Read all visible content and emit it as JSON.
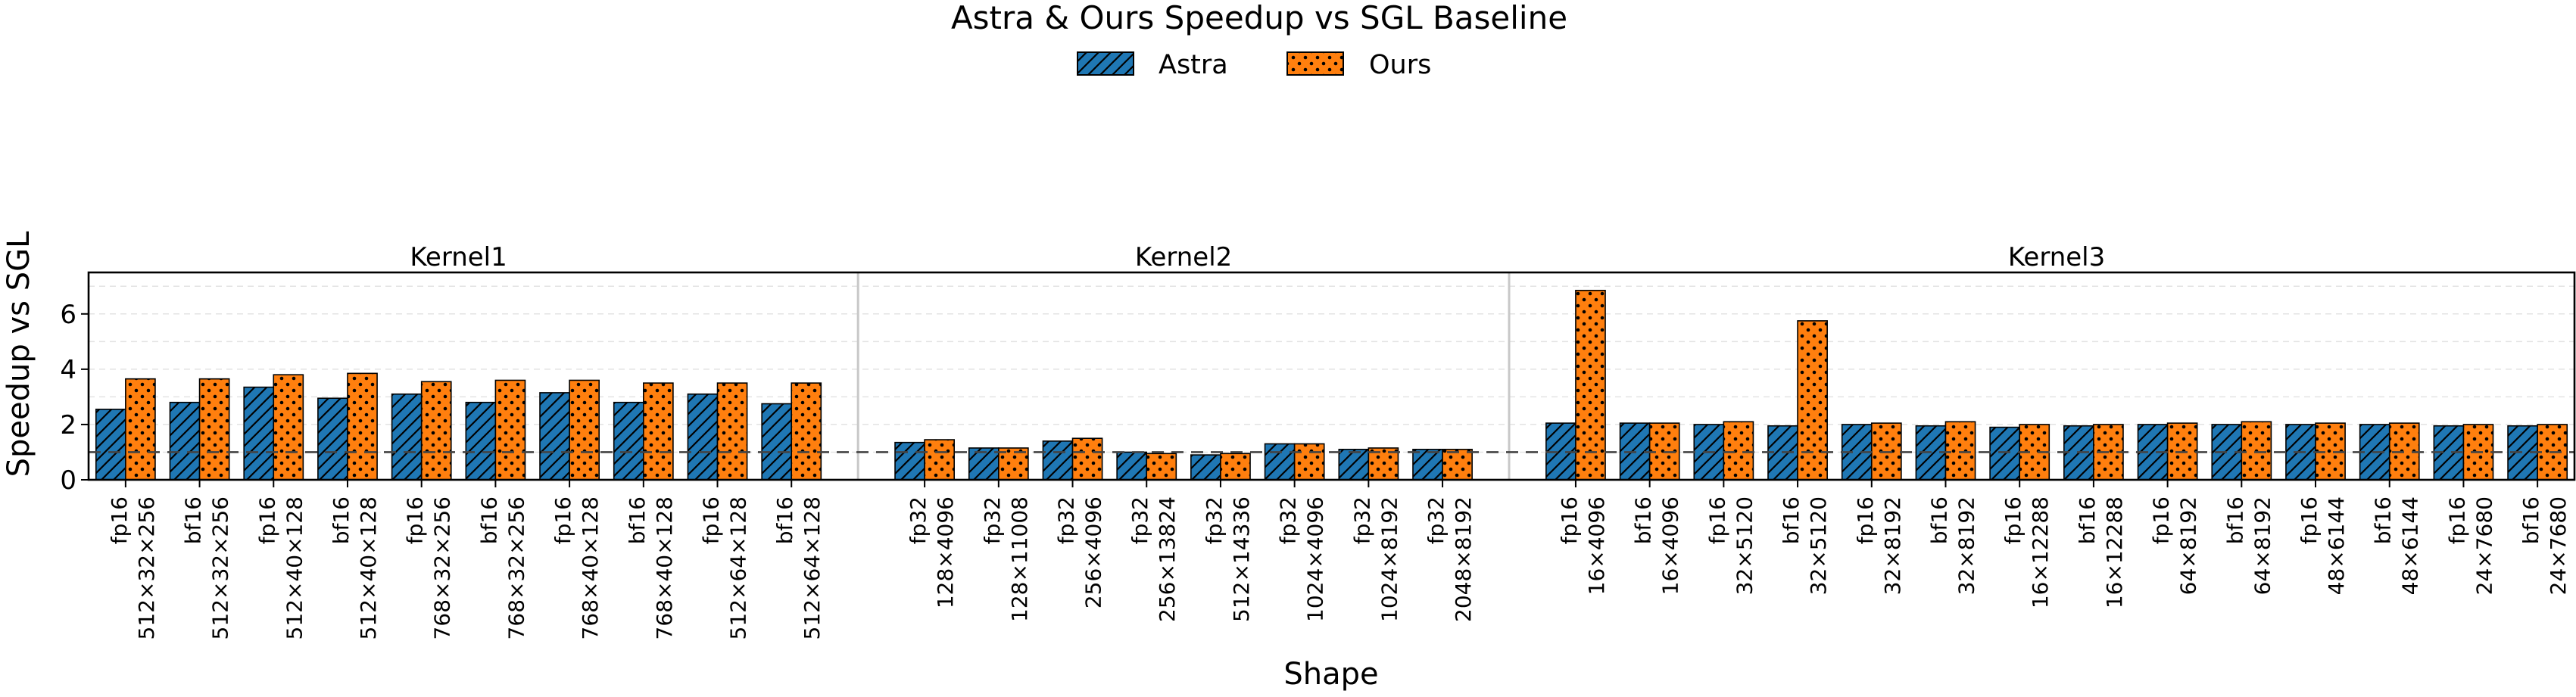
{
  "title": "Astra & Ours Speedup vs SGL Baseline",
  "legend": [
    {
      "name": "Astra",
      "color": "#1f77b4",
      "hatch": "diagonal"
    },
    {
      "name": "Ours",
      "color": "#ff7f0e",
      "hatch": "dots"
    }
  ],
  "chart_data": {
    "type": "bar",
    "title": "Astra & Ours Speedup vs SGL Baseline",
    "xlabel": "Shape",
    "ylabel": "Speedup vs SGL",
    "ylim": [
      0,
      7.5
    ],
    "yticks": [
      0,
      2,
      4,
      6
    ],
    "baseline": 1.0,
    "legend_position": "top-center",
    "series_names": [
      "Astra",
      "Ours"
    ],
    "groups": [
      {
        "name": "Kernel1",
        "categories": [
          {
            "dtype": "fp16",
            "shape": "512×32×256"
          },
          {
            "dtype": "bf16",
            "shape": "512×32×256"
          },
          {
            "dtype": "fp16",
            "shape": "512×40×128"
          },
          {
            "dtype": "bf16",
            "shape": "512×40×128"
          },
          {
            "dtype": "fp16",
            "shape": "768×32×256"
          },
          {
            "dtype": "bf16",
            "shape": "768×32×256"
          },
          {
            "dtype": "fp16",
            "shape": "768×40×128"
          },
          {
            "dtype": "bf16",
            "shape": "768×40×128"
          },
          {
            "dtype": "fp16",
            "shape": "512×64×128"
          },
          {
            "dtype": "bf16",
            "shape": "512×64×128"
          }
        ],
        "astra": [
          2.55,
          2.8,
          3.35,
          2.95,
          3.1,
          2.8,
          3.15,
          2.8,
          3.1,
          2.75
        ],
        "ours": [
          3.65,
          3.65,
          3.8,
          3.85,
          3.55,
          3.6,
          3.6,
          3.5,
          3.5,
          3.5
        ]
      },
      {
        "name": "Kernel2",
        "categories": [
          {
            "dtype": "fp32",
            "shape": "128×4096"
          },
          {
            "dtype": "fp32",
            "shape": "128×11008"
          },
          {
            "dtype": "fp32",
            "shape": "256×4096"
          },
          {
            "dtype": "fp32",
            "shape": "256×13824"
          },
          {
            "dtype": "fp32",
            "shape": "512×14336"
          },
          {
            "dtype": "fp32",
            "shape": "1024×4096"
          },
          {
            "dtype": "fp32",
            "shape": "1024×8192"
          },
          {
            "dtype": "fp32",
            "shape": "2048×8192"
          }
        ],
        "astra": [
          1.35,
          1.15,
          1.4,
          1.0,
          0.9,
          1.3,
          1.1,
          1.1
        ],
        "ours": [
          1.45,
          1.15,
          1.5,
          0.95,
          0.95,
          1.3,
          1.15,
          1.1
        ]
      },
      {
        "name": "Kernel3",
        "categories": [
          {
            "dtype": "fp16",
            "shape": "16×4096"
          },
          {
            "dtype": "bf16",
            "shape": "16×4096"
          },
          {
            "dtype": "fp16",
            "shape": "32×5120"
          },
          {
            "dtype": "bf16",
            "shape": "32×5120"
          },
          {
            "dtype": "fp16",
            "shape": "32×8192"
          },
          {
            "dtype": "bf16",
            "shape": "32×8192"
          },
          {
            "dtype": "fp16",
            "shape": "16×12288"
          },
          {
            "dtype": "bf16",
            "shape": "16×12288"
          },
          {
            "dtype": "fp16",
            "shape": "64×8192"
          },
          {
            "dtype": "bf16",
            "shape": "64×8192"
          },
          {
            "dtype": "fp16",
            "shape": "48×6144"
          },
          {
            "dtype": "bf16",
            "shape": "48×6144"
          },
          {
            "dtype": "fp16",
            "shape": "24×7680"
          },
          {
            "dtype": "bf16",
            "shape": "24×7680"
          }
        ],
        "astra": [
          2.05,
          2.05,
          2.0,
          1.95,
          2.0,
          1.95,
          1.9,
          1.95,
          2.0,
          2.0,
          2.0,
          2.0,
          1.95,
          1.95
        ],
        "ours": [
          6.85,
          2.05,
          2.1,
          5.75,
          2.05,
          2.1,
          2.0,
          2.0,
          2.05,
          2.1,
          2.05,
          2.05,
          2.0,
          2.0
        ]
      }
    ]
  }
}
